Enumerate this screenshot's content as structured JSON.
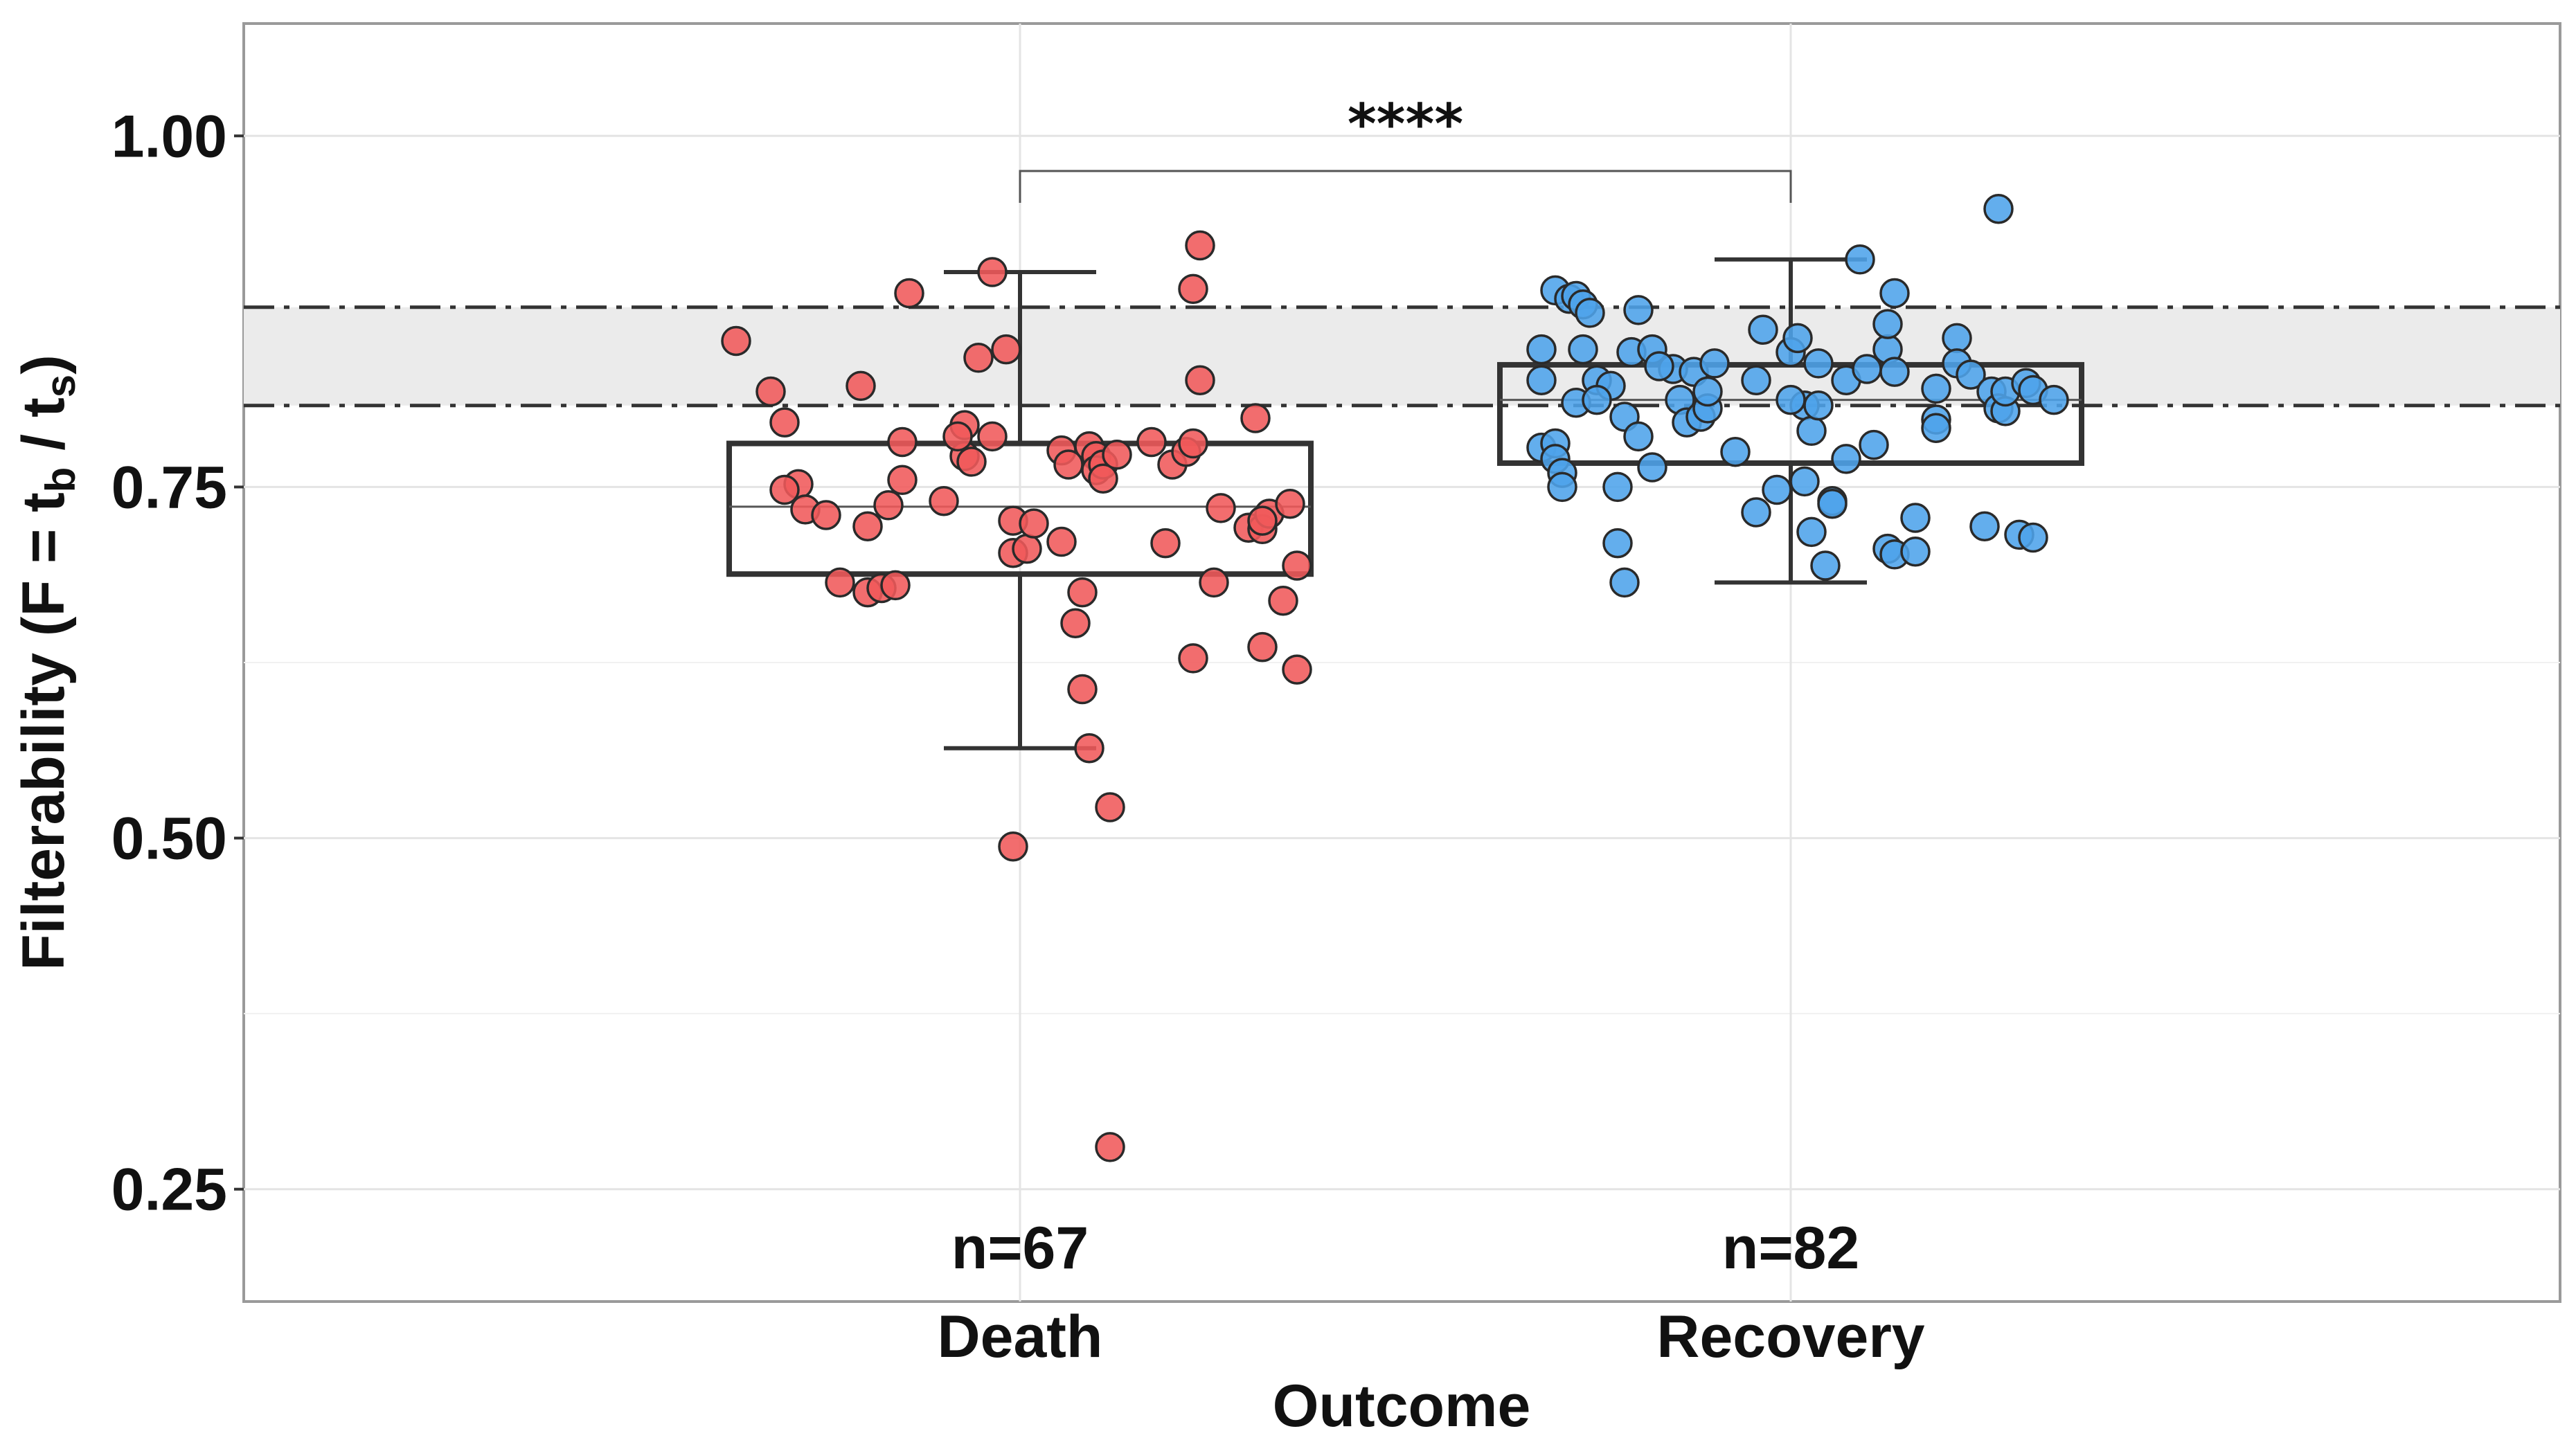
{
  "chart_data": {
    "type": "scatter",
    "subtype": "boxplot-with-jitter",
    "xlabel": "Outcome",
    "ylabel": {
      "main": "Filterability (F = t",
      "sub_b": "b",
      "mid": " / t",
      "sub_s": "s",
      "end": ")"
    },
    "ylim": [
      0.17,
      1.08
    ],
    "yticks": [
      0.25,
      0.5,
      0.75,
      1.0
    ],
    "ytick_labels": [
      "0.25",
      "0.50",
      "0.75",
      "1.00"
    ],
    "grid": true,
    "reference_band": {
      "low": 0.808,
      "high": 0.878,
      "style": "dash-dot",
      "fill": "#ebebeb"
    },
    "significance": {
      "label": "****",
      "between": [
        "Death",
        "Recovery"
      ],
      "y": 0.975
    },
    "categories": [
      "Death",
      "Recovery"
    ],
    "series": [
      {
        "category": "Death",
        "n_label": "n=67",
        "color": "#f0595a",
        "box": {
          "whisker_low": 0.564,
          "q1": 0.688,
          "median": 0.736,
          "q3": 0.781,
          "whisker_high": 0.903
        },
        "points": [
          [
            -0.41,
            0.854
          ],
          [
            -0.36,
            0.818
          ],
          [
            -0.34,
            0.796
          ],
          [
            -0.32,
            0.752
          ],
          [
            -0.34,
            0.748
          ],
          [
            -0.31,
            0.734
          ],
          [
            -0.28,
            0.73
          ],
          [
            -0.23,
            0.822
          ],
          [
            -0.22,
            0.722
          ],
          [
            -0.26,
            0.682
          ],
          [
            -0.22,
            0.675
          ],
          [
            -0.2,
            0.678
          ],
          [
            -0.18,
            0.68
          ],
          [
            -0.19,
            0.737
          ],
          [
            -0.17,
            0.782
          ],
          [
            -0.17,
            0.755
          ],
          [
            -0.16,
            0.888
          ],
          [
            -0.11,
            0.74
          ],
          [
            -0.08,
            0.772
          ],
          [
            -0.08,
            0.794
          ],
          [
            -0.07,
            0.768
          ],
          [
            -0.06,
            0.842
          ],
          [
            -0.04,
            0.786
          ],
          [
            -0.04,
            0.903
          ],
          [
            -0.02,
            0.848
          ],
          [
            -0.01,
            0.726
          ],
          [
            -0.01,
            0.703
          ],
          [
            0.01,
            0.706
          ],
          [
            0.02,
            0.724
          ],
          [
            0.06,
            0.711
          ],
          [
            0.06,
            0.776
          ],
          [
            0.07,
            0.766
          ],
          [
            0.08,
            0.653
          ],
          [
            0.09,
            0.675
          ],
          [
            0.09,
            0.606
          ],
          [
            0.1,
            0.779
          ],
          [
            0.11,
            0.772
          ],
          [
            0.1,
            0.564
          ],
          [
            0.11,
            0.762
          ],
          [
            0.12,
            0.766
          ],
          [
            0.12,
            0.756
          ],
          [
            0.13,
            0.522
          ],
          [
            -0.01,
            0.494
          ],
          [
            0.13,
            0.28
          ],
          [
            0.19,
            0.782
          ],
          [
            0.21,
            0.71
          ],
          [
            0.22,
            0.766
          ],
          [
            0.24,
            0.775
          ],
          [
            0.25,
            0.781
          ],
          [
            0.25,
            0.891
          ],
          [
            0.26,
            0.922
          ],
          [
            0.26,
            0.826
          ],
          [
            0.25,
            0.628
          ],
          [
            0.28,
            0.682
          ],
          [
            0.29,
            0.735
          ],
          [
            0.33,
            0.721
          ],
          [
            0.35,
            0.72
          ],
          [
            0.35,
            0.636
          ],
          [
            0.34,
            0.799
          ],
          [
            0.36,
            0.731
          ],
          [
            0.38,
            0.669
          ],
          [
            0.39,
            0.738
          ],
          [
            0.4,
            0.694
          ],
          [
            0.4,
            0.62
          ],
          [
            0.35,
            0.726
          ],
          [
            0.14,
            0.773
          ],
          [
            -0.09,
            0.786
          ]
        ]
      },
      {
        "category": "Recovery",
        "n_label": "n=82",
        "color": "#4da3ea",
        "box": {
          "whisker_low": 0.682,
          "q1": 0.767,
          "median": 0.812,
          "q3": 0.837,
          "whisker_high": 0.912
        },
        "points": [
          [
            -0.36,
            0.848
          ],
          [
            -0.36,
            0.826
          ],
          [
            -0.36,
            0.778
          ],
          [
            -0.34,
            0.781
          ],
          [
            -0.34,
            0.77
          ],
          [
            -0.33,
            0.76
          ],
          [
            -0.33,
            0.75
          ],
          [
            -0.34,
            0.89
          ],
          [
            -0.32,
            0.884
          ],
          [
            -0.31,
            0.886
          ],
          [
            -0.3,
            0.88
          ],
          [
            -0.29,
            0.874
          ],
          [
            -0.3,
            0.848
          ],
          [
            -0.31,
            0.81
          ],
          [
            -0.28,
            0.826
          ],
          [
            -0.26,
            0.822
          ],
          [
            -0.25,
            0.75
          ],
          [
            -0.25,
            0.71
          ],
          [
            -0.24,
            0.682
          ],
          [
            -0.24,
            0.8
          ],
          [
            -0.22,
            0.786
          ],
          [
            -0.23,
            0.846
          ],
          [
            -0.22,
            0.876
          ],
          [
            -0.2,
            0.848
          ],
          [
            -0.2,
            0.764
          ],
          [
            -0.17,
            0.834
          ],
          [
            -0.16,
            0.812
          ],
          [
            -0.15,
            0.796
          ],
          [
            -0.14,
            0.832
          ],
          [
            -0.13,
            0.8
          ],
          [
            -0.12,
            0.806
          ],
          [
            -0.11,
            0.838
          ],
          [
            -0.08,
            0.775
          ],
          [
            -0.05,
            0.826
          ],
          [
            -0.05,
            0.732
          ],
          [
            -0.04,
            0.862
          ],
          [
            -0.02,
            0.748
          ],
          [
            0.0,
            0.846
          ],
          [
            0.01,
            0.856
          ],
          [
            0.02,
            0.808
          ],
          [
            0.02,
            0.754
          ],
          [
            0.03,
            0.79
          ],
          [
            0.03,
            0.718
          ],
          [
            0.04,
            0.838
          ],
          [
            0.04,
            0.808
          ],
          [
            0.05,
            0.694
          ],
          [
            0.06,
            0.74
          ],
          [
            0.06,
            0.738
          ],
          [
            0.08,
            0.826
          ],
          [
            0.08,
            0.77
          ],
          [
            0.1,
            0.912
          ],
          [
            0.12,
            0.78
          ],
          [
            0.14,
            0.848
          ],
          [
            0.14,
            0.866
          ],
          [
            0.14,
            0.706
          ],
          [
            0.15,
            0.702
          ],
          [
            0.15,
            0.832
          ],
          [
            0.15,
            0.888
          ],
          [
            0.18,
            0.704
          ],
          [
            0.18,
            0.728
          ],
          [
            0.21,
            0.82
          ],
          [
            0.21,
            0.798
          ],
          [
            0.21,
            0.792
          ],
          [
            0.24,
            0.856
          ],
          [
            0.24,
            0.838
          ],
          [
            0.26,
            0.83
          ],
          [
            0.28,
            0.722
          ],
          [
            0.29,
            0.818
          ],
          [
            0.3,
            0.806
          ],
          [
            0.31,
            0.804
          ],
          [
            0.31,
            0.818
          ],
          [
            0.33,
            0.716
          ],
          [
            0.34,
            0.824
          ],
          [
            0.35,
            0.819
          ],
          [
            0.35,
            0.714
          ],
          [
            0.38,
            0.812
          ],
          [
            0.3,
            0.948
          ],
          [
            -0.12,
            0.818
          ],
          [
            0.11,
            0.834
          ],
          [
            -0.19,
            0.836
          ],
          [
            -0.28,
            0.812
          ],
          [
            0.0,
            0.812
          ]
        ]
      }
    ]
  }
}
